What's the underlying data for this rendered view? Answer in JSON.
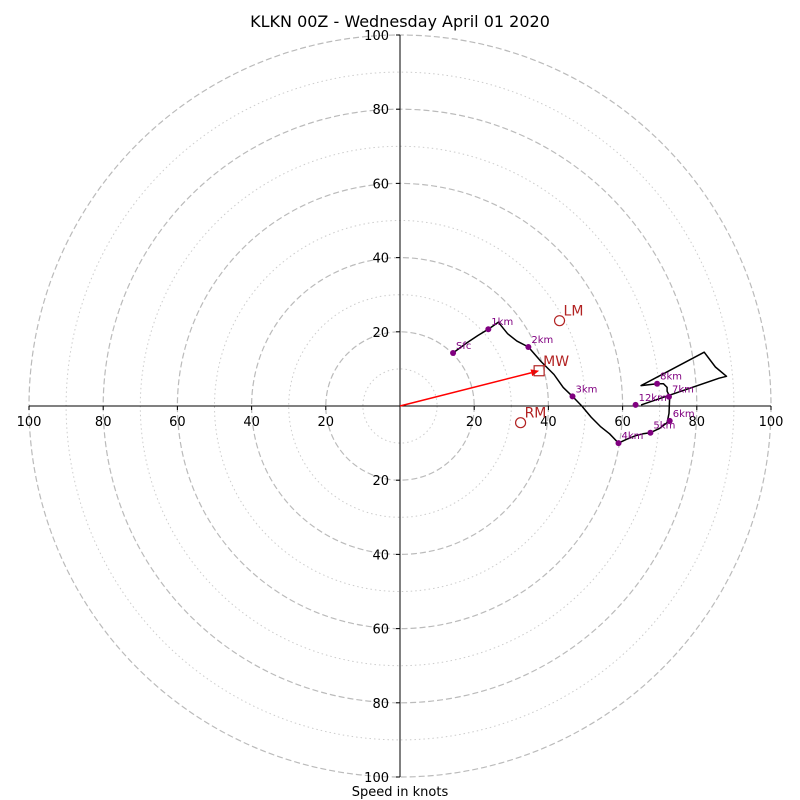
{
  "chart_data": {
    "type": "hodograph",
    "title": "KLKN 00Z - Wednesday April 01 2020",
    "xlabel": "Speed in knots",
    "units": "knots",
    "max_speed": 100,
    "major_rings": [
      20,
      40,
      60,
      80,
      100
    ],
    "minor_rings": [
      10,
      30,
      50,
      70,
      90
    ],
    "x_tick_labels": [
      {
        "value": -100,
        "label": "100"
      },
      {
        "value": -80,
        "label": "80"
      },
      {
        "value": -60,
        "label": "60"
      },
      {
        "value": -40,
        "label": "40"
      },
      {
        "value": -20,
        "label": "20"
      },
      {
        "value": 20,
        "label": "20"
      },
      {
        "value": 40,
        "label": "40"
      },
      {
        "value": 60,
        "label": "60"
      },
      {
        "value": 80,
        "label": "80"
      },
      {
        "value": 100,
        "label": "100"
      }
    ],
    "y_tick_labels": [
      {
        "value": 100,
        "label": "100"
      },
      {
        "value": 80,
        "label": "80"
      },
      {
        "value": 60,
        "label": "60"
      },
      {
        "value": 40,
        "label": "40"
      },
      {
        "value": 20,
        "label": "20"
      },
      {
        "value": -20,
        "label": "20"
      },
      {
        "value": -40,
        "label": "40"
      },
      {
        "value": -60,
        "label": "60"
      },
      {
        "value": -80,
        "label": "80"
      },
      {
        "value": -100,
        "label": "100"
      }
    ],
    "wind_profile": [
      [
        14.3,
        14.3
      ],
      [
        18,
        17
      ],
      [
        21,
        19
      ],
      [
        23.8,
        20.7
      ],
      [
        26.5,
        22.6
      ],
      [
        29,
        19.5
      ],
      [
        31.5,
        17.5
      ],
      [
        34.6,
        15.9
      ],
      [
        38,
        12
      ],
      [
        41.5,
        8.5
      ],
      [
        44,
        5
      ],
      [
        46.5,
        2.6
      ],
      [
        49,
        0
      ],
      [
        51.5,
        -3
      ],
      [
        54,
        -5.5
      ],
      [
        56.5,
        -7.5
      ],
      [
        58.9,
        -10
      ],
      [
        61,
        -9
      ],
      [
        63.5,
        -8
      ],
      [
        65.5,
        -7.5
      ],
      [
        67.5,
        -7.2
      ],
      [
        70,
        -6
      ],
      [
        72,
        -4.5
      ],
      [
        72.5,
        -2
      ],
      [
        72.7,
        2.5
      ],
      [
        72,
        4
      ],
      [
        72,
        5
      ],
      [
        71,
        6
      ],
      [
        69.3,
        6
      ],
      [
        65,
        5.5
      ],
      [
        82,
        14.5
      ],
      [
        85,
        10.5
      ],
      [
        88,
        8
      ],
      [
        86,
        7.5
      ],
      [
        65,
        0.3
      ]
    ],
    "height_points": [
      {
        "label": "Sfc",
        "u": 14.3,
        "v": 14.3
      },
      {
        "label": "1km",
        "u": 23.8,
        "v": 20.7
      },
      {
        "label": "2km",
        "u": 34.6,
        "v": 15.9
      },
      {
        "label": "3km",
        "u": 46.5,
        "v": 2.6
      },
      {
        "label": "4km",
        "u": 58.9,
        "v": -10
      },
      {
        "label": "5km",
        "u": 67.5,
        "v": -7.2
      },
      {
        "label": "6km",
        "u": 72.7,
        "v": -4
      },
      {
        "label": "7km",
        "u": 72.5,
        "v": 2.5
      },
      {
        "label": "8km",
        "u": 69.3,
        "v": 6
      },
      {
        "label": "12km",
        "u": 63.5,
        "v": 0.3
      }
    ],
    "storm_motions": [
      {
        "label": "LM",
        "u": 43,
        "v": 23,
        "marker": "circle"
      },
      {
        "label": "MW",
        "u": 37.5,
        "v": 9.5,
        "marker": "square"
      },
      {
        "label": "RM",
        "u": 32.5,
        "v": -4.5,
        "marker": "circle"
      }
    ],
    "arrow": {
      "from": [
        0,
        0
      ],
      "to": [
        37.5,
        9.5
      ]
    },
    "colors": {
      "hodograph_line": "#000000",
      "height_marker": "#800080",
      "storm_motion": "#b22222",
      "arrow": "#ff0000",
      "major_ring": "#bbbbbb",
      "minor_ring": "#cccccc",
      "axis": "#000000"
    }
  }
}
